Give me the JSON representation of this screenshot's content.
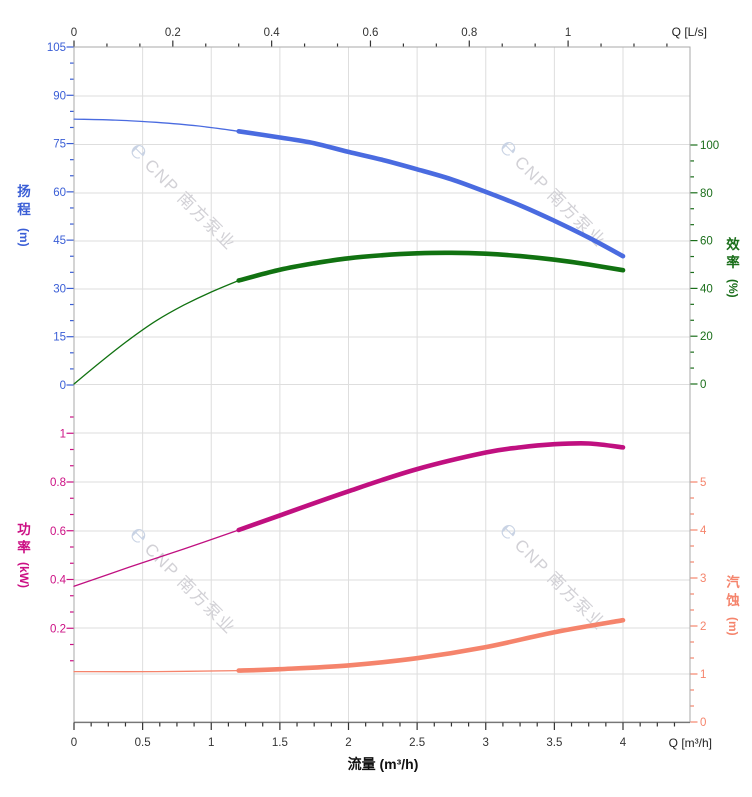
{
  "watermark": {
    "logo_glyph": "℮",
    "text": "CNP 南方泵业"
  },
  "chart_data": {
    "type": "line",
    "title": "",
    "grid": "on",
    "axes": {
      "flow_bottom": {
        "title": "流量 (m³/h)",
        "unit_label": "Q [m³/h]",
        "tick_labels": [
          "0",
          "0.5",
          "1",
          "1.5",
          "2",
          "2.5",
          "3",
          "3.5",
          "4"
        ],
        "tick_values": [
          0,
          0.5,
          1,
          1.5,
          2,
          2.5,
          3,
          3.5,
          4
        ],
        "range": [
          0,
          4.49
        ]
      },
      "flow_top": {
        "unit_label": "Q [L/s]",
        "tick_labels": [
          "0",
          "0.2",
          "0.4",
          "0.6",
          "0.8",
          "1"
        ],
        "tick_values": [
          0,
          0.2,
          0.4,
          0.6,
          0.8,
          1
        ],
        "range": [
          0,
          1.247
        ]
      },
      "head": {
        "title": "扬程",
        "unit": "(m)",
        "side": "left",
        "tick_labels": [
          "105",
          "90",
          "75",
          "60",
          "45",
          "30",
          "15",
          "0"
        ],
        "tick_values": [
          105,
          90,
          75,
          60,
          45,
          30,
          15,
          0
        ],
        "range": [
          0,
          105
        ]
      },
      "eff": {
        "title": "效率",
        "unit": "(%)",
        "side": "right",
        "tick_labels": [
          "100",
          "80",
          "60",
          "40",
          "20",
          "0"
        ],
        "tick_values": [
          100,
          80,
          60,
          40,
          20,
          0
        ],
        "range": [
          0,
          100
        ]
      },
      "power": {
        "title": "功率",
        "unit": "(kW)",
        "side": "left",
        "tick_labels": [
          "1",
          "0.8",
          "0.6",
          "0.4",
          "0.2"
        ],
        "tick_values": [
          1,
          0.8,
          0.6,
          0.4,
          0.2
        ],
        "range": [
          0,
          1.2
        ]
      },
      "npsh": {
        "title": "汽蚀",
        "unit": "(m)",
        "side": "right",
        "tick_labels": [
          "5",
          "4",
          "3",
          "2",
          "1",
          "0"
        ],
        "tick_values": [
          5,
          4,
          3,
          2,
          1,
          0
        ],
        "range": [
          0,
          6
        ]
      }
    },
    "series": [
      {
        "name": "head-curve",
        "axis": "head",
        "color": "#4a6be0",
        "points_thin": [
          [
            0,
            82.6
          ],
          [
            0.3,
            82.3
          ],
          [
            0.6,
            81.6
          ],
          [
            0.9,
            80.5
          ],
          [
            1.2,
            78.8
          ]
        ],
        "points_thick": [
          [
            1.2,
            78.8
          ],
          [
            1.5,
            76.9
          ],
          [
            1.75,
            75.1
          ],
          [
            2,
            72.4
          ],
          [
            2.25,
            69.9
          ],
          [
            2.5,
            67.0
          ],
          [
            2.75,
            63.9
          ],
          [
            3,
            60.0
          ],
          [
            3.25,
            55.8
          ],
          [
            3.5,
            51.0
          ],
          [
            3.75,
            45.8
          ],
          [
            4,
            40.0
          ]
        ]
      },
      {
        "name": "efficiency-curve",
        "axis": "eff",
        "color": "#117211",
        "points_thin": [
          [
            0,
            0
          ],
          [
            0.2,
            9.5
          ],
          [
            0.4,
            18.5
          ],
          [
            0.6,
            26.5
          ],
          [
            0.8,
            33
          ],
          [
            1,
            38.5
          ],
          [
            1.2,
            43.3
          ]
        ],
        "points_thick": [
          [
            1.2,
            43.3
          ],
          [
            1.5,
            47.8
          ],
          [
            1.75,
            50.5
          ],
          [
            2,
            52.6
          ],
          [
            2.25,
            53.9
          ],
          [
            2.5,
            54.7
          ],
          [
            2.75,
            54.9
          ],
          [
            3,
            54.5
          ],
          [
            3.25,
            53.5
          ],
          [
            3.5,
            52.0
          ],
          [
            3.75,
            50.0
          ],
          [
            4,
            47.6
          ]
        ]
      },
      {
        "name": "power-curve",
        "axis": "power",
        "color": "#c01080",
        "points_thin": [
          [
            0,
            0.372
          ],
          [
            0.4,
            0.45
          ],
          [
            0.8,
            0.525
          ],
          [
            1.2,
            0.603
          ]
        ],
        "points_thick": [
          [
            1.2,
            0.603
          ],
          [
            1.5,
            0.663
          ],
          [
            2,
            0.762
          ],
          [
            2.5,
            0.853
          ],
          [
            3,
            0.921
          ],
          [
            3.25,
            0.942
          ],
          [
            3.5,
            0.955
          ],
          [
            3.75,
            0.958
          ],
          [
            4,
            0.942
          ]
        ]
      },
      {
        "name": "npsh-curve",
        "axis": "npsh",
        "color": "#f5846c",
        "points_thin": [
          [
            0,
            1.05
          ],
          [
            0.6,
            1.05
          ],
          [
            1.2,
            1.07
          ]
        ],
        "points_thick": [
          [
            1.2,
            1.07
          ],
          [
            1.5,
            1.1
          ],
          [
            2,
            1.18
          ],
          [
            2.5,
            1.33
          ],
          [
            3,
            1.56
          ],
          [
            3.5,
            1.87
          ],
          [
            4,
            2.12
          ]
        ]
      }
    ]
  },
  "colors": {
    "head_label": "#3a5ed6",
    "eff_label": "#1a6e1a",
    "power_label": "#cc1084",
    "npsh_label": "#f5846c",
    "axis_black": "#333333",
    "grid": "#dedede",
    "border": "#a9a9a9",
    "bottom_axis": "#777777",
    "watermark_text": "#d2d1d6",
    "watermark_logo": "#c9d3e4"
  }
}
